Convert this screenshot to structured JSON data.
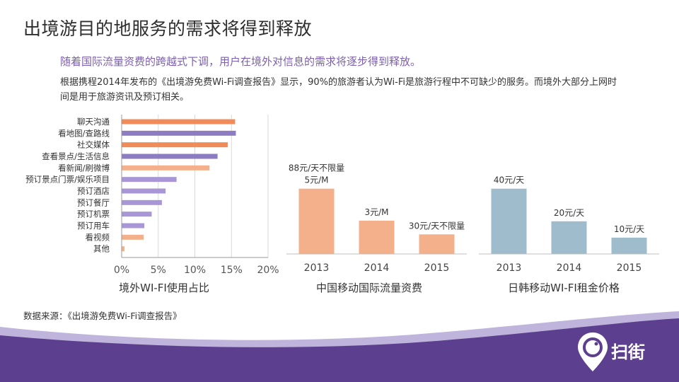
{
  "title": "出境游目的地服务的需求将得到释放",
  "subtitle": "随着国际流量资费的跨越式下调，用户在境外对信息的需求将逐步得到释放。",
  "body": "根据携程2014年发布的《出境游免费Wi-Fi调查报告》显示，90%的旅游者认为Wi-Fi是旅游行程中不可缺少的服务。而境外大部分上网时间是用于旅游资讯及预订相关。",
  "source": "数据来源：《出境游免费Wi-Fi调查报告》",
  "brand": {
    "name": "扫街",
    "logo": "location-pin-smile-icon"
  },
  "colors": {
    "orange": "#f08b5a",
    "purple": "#8e7cc3",
    "light_orange": "#f4b08a",
    "light_purple": "#a896d6",
    "blue_gray": "#9ebccb",
    "footer": "#5c3f8f"
  },
  "chart_data": [
    {
      "type": "bar",
      "orientation": "horizontal",
      "title": "境外WI-FI使用占比",
      "categories": [
        "聊天沟通",
        "看地图/查路线",
        "社交媒体",
        "查看景点/生活信息",
        "看新闻/刷微博",
        "预订景点门票/娱乐项目",
        "预订酒店",
        "预订餐厅",
        "预订机票",
        "预订用车",
        "看视频",
        "其他"
      ],
      "values": [
        0.155,
        0.156,
        0.145,
        0.131,
        0.12,
        0.075,
        0.06,
        0.055,
        0.041,
        0.031,
        0.03,
        0.004
      ],
      "bar_colors": [
        "#f08b5a",
        "#8e7cc3",
        "#f08b5a",
        "#8e7cc3",
        "#f4b08a",
        "#a896d6",
        "#a896d6",
        "#a896d6",
        "#a896d6",
        "#a896d6",
        "#f4b08a",
        "#f4b08a"
      ],
      "xlim": [
        0,
        0.2
      ],
      "xticks": [
        "0%",
        "5%",
        "10%",
        "15%",
        "20%"
      ],
      "grid": true
    },
    {
      "type": "bar",
      "title": "中国移动国际流量资费",
      "categories": [
        "2013",
        "2014",
        "2015"
      ],
      "values": [
        100,
        51,
        30
      ],
      "data_labels": [
        [
          "88元/天不限量",
          "5元/M"
        ],
        [
          "3元/M"
        ],
        [
          "30元/天不限量"
        ]
      ],
      "color": "#f4b08a",
      "ylim": [
        0,
        130
      ]
    },
    {
      "type": "bar",
      "title": "日韩移动WI-FI租金价格",
      "categories": [
        "2013",
        "2014",
        "2015"
      ],
      "values": [
        40,
        20,
        10
      ],
      "data_labels": [
        [
          "40元/天"
        ],
        [
          "20元/天"
        ],
        [
          "10元/天"
        ]
      ],
      "color": "#9ebccb",
      "ylim": [
        0,
        52
      ]
    }
  ]
}
